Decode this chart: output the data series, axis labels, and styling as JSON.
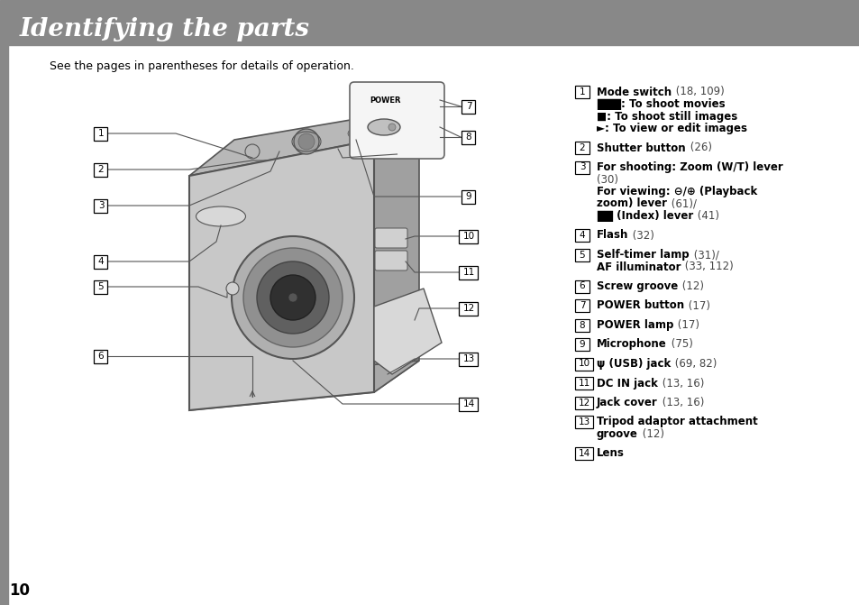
{
  "title": "Identifying the parts",
  "subtitle": "See the pages in parentheses for details of operation.",
  "page_number": "10",
  "bg_color": "#ffffff",
  "sidebar_color": "#888888",
  "title_bar_color": "#888888",
  "line_color": "#555555",
  "camera_body_color": "#c8c8c8",
  "camera_top_color": "#b0b0b0",
  "camera_right_color": "#a0a0a0",
  "camera_edge_color": "#555555",
  "parts_list": [
    {
      "num": "1",
      "lines": [
        {
          "bold": "Mode switch",
          "normal": " (18, 109)"
        },
        {
          "bold": "███: To shoot movies",
          "normal": ""
        },
        {
          "bold": "■: To shoot still images",
          "normal": ""
        },
        {
          "bold": "►: To view or edit images",
          "normal": ""
        }
      ]
    },
    {
      "num": "2",
      "lines": [
        {
          "bold": "Shutter button",
          "normal": " (26)"
        }
      ]
    },
    {
      "num": "3",
      "lines": [
        {
          "bold": "For shooting: Zoom (W/T) lever",
          "normal": ""
        },
        {
          "bold": "",
          "normal": "(30)"
        },
        {
          "bold": "For viewing: ⊖/⊕ (Playback",
          "normal": ""
        },
        {
          "bold": "zoom) lever",
          "normal": " (61)/"
        },
        {
          "bold": "██ (Index) lever",
          "normal": " (41)"
        }
      ]
    },
    {
      "num": "4",
      "lines": [
        {
          "bold": "Flash",
          "normal": " (32)"
        }
      ]
    },
    {
      "num": "5",
      "lines": [
        {
          "bold": "Self-timer lamp",
          "normal": " (31)/"
        },
        {
          "bold": "AF illuminator",
          "normal": " (33, 112)"
        }
      ]
    },
    {
      "num": "6",
      "lines": [
        {
          "bold": "Screw groove",
          "normal": " (12)"
        }
      ]
    },
    {
      "num": "7",
      "lines": [
        {
          "bold": "POWER button",
          "normal": " (17)"
        }
      ]
    },
    {
      "num": "8",
      "lines": [
        {
          "bold": "POWER lamp",
          "normal": " (17)"
        }
      ]
    },
    {
      "num": "9",
      "lines": [
        {
          "bold": "Microphone",
          "normal": " (75)"
        }
      ]
    },
    {
      "num": "10",
      "lines": [
        {
          "bold": "ψ (USB) jack",
          "normal": " (69, 82)"
        }
      ]
    },
    {
      "num": "11",
      "lines": [
        {
          "bold": "DC IN jack",
          "normal": " (13, 16)"
        }
      ]
    },
    {
      "num": "12",
      "lines": [
        {
          "bold": "Jack cover",
          "normal": " (13, 16)"
        }
      ]
    },
    {
      "num": "13",
      "lines": [
        {
          "bold": "Tripod adaptor attachment",
          "normal": ""
        },
        {
          "bold": "groove",
          "normal": " (12)"
        }
      ]
    },
    {
      "num": "14",
      "lines": [
        {
          "bold": "Lens",
          "normal": ""
        }
      ]
    }
  ]
}
